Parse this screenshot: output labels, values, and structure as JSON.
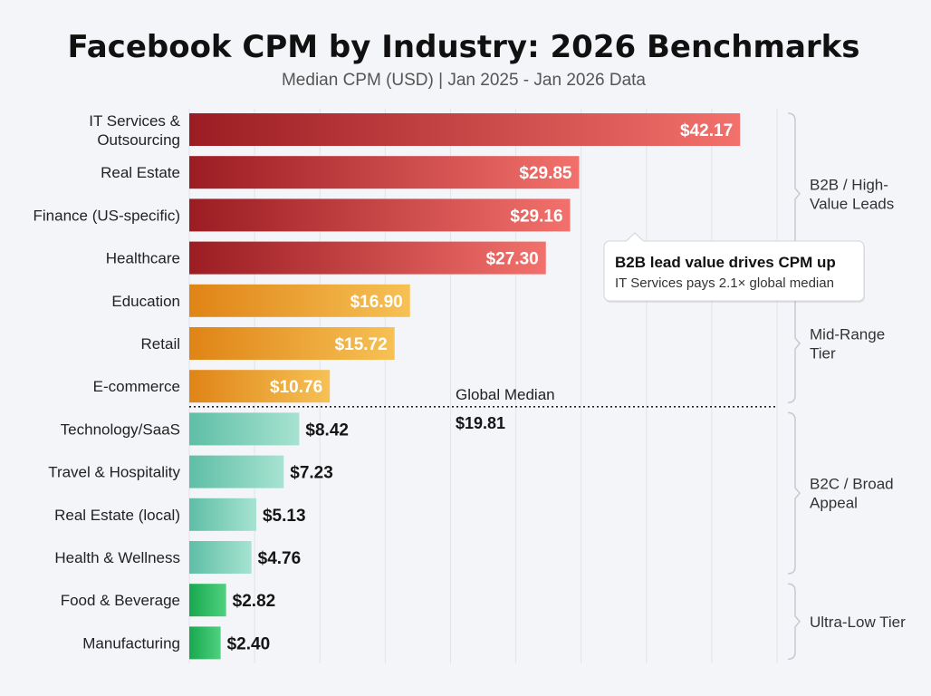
{
  "chart_data": {
    "type": "bar",
    "orientation": "horizontal",
    "title": "Facebook CPM by Industry: 2026 Benchmarks",
    "subtitle": "Median CPM (USD) | Jan 2025 - Jan 2026 Data",
    "xlim": [
      0,
      45
    ],
    "grid": true,
    "categories": [
      [
        "IT Services &",
        "Outsourcing"
      ],
      [
        "Real Estate"
      ],
      [
        "Finance (US-specific)"
      ],
      [
        "Healthcare"
      ],
      [
        "Education"
      ],
      [
        "Retail"
      ],
      [
        "E-commerce"
      ],
      [
        "Technology/SaaS"
      ],
      [
        "Travel & Hospitality"
      ],
      [
        "Real Estate (local)"
      ],
      [
        "Health & Wellness"
      ],
      [
        "Food & Beverage"
      ],
      [
        "Manufacturing"
      ]
    ],
    "values": [
      42.17,
      29.85,
      29.16,
      27.3,
      16.9,
      15.72,
      10.76,
      8.42,
      7.23,
      5.13,
      4.76,
      2.82,
      2.4
    ],
    "value_labels": [
      "$42.17",
      "$29.85",
      "$29.16",
      "$27.30",
      "$16.90",
      "$15.72",
      "$10.76",
      "$8.42",
      "$7.23",
      "$5.13",
      "$4.76",
      "$2.82",
      "$2.40"
    ],
    "tiers": [
      {
        "label": [
          "B2B / High-",
          "Value Leads"
        ],
        "from": 0,
        "to": 3,
        "color_start": "#9b1c22",
        "color_end": "#f2716c"
      },
      {
        "label": [
          "Mid-Range",
          "Tier"
        ],
        "from": 4,
        "to": 6,
        "color_start": "#e08416",
        "color_end": "#f6c155"
      },
      {
        "label": [
          "B2C / Broad",
          "Appeal"
        ],
        "from": 7,
        "to": 10,
        "color_start": "#5fbea6",
        "color_end": "#a6e3d0"
      },
      {
        "label": [
          "Ultra-Low Tier"
        ],
        "from": 11,
        "to": 12,
        "color_start": "#18a84f",
        "color_end": "#4fd17f"
      }
    ],
    "reference_line": {
      "label": "Global Median",
      "value_label": "$19.81",
      "value": 19.81
    },
    "annotation": {
      "title": "B2B lead value drives CPM up",
      "text": "IT Services pays 2.1× global median"
    }
  }
}
